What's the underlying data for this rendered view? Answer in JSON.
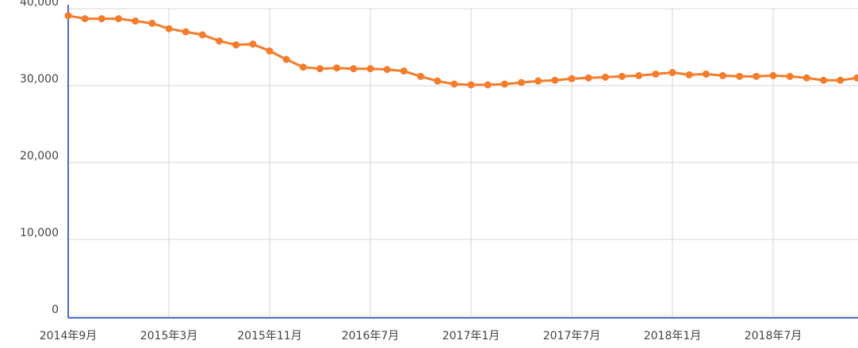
{
  "chart_data": {
    "type": "line",
    "categories": [
      "2014年9月",
      null,
      null,
      null,
      null,
      null,
      "2015年3月",
      null,
      null,
      null,
      null,
      null,
      "2015年11月",
      null,
      null,
      null,
      null,
      null,
      "2016年7月",
      null,
      null,
      null,
      null,
      null,
      "2017年1月",
      null,
      null,
      null,
      null,
      null,
      "2017年7月",
      null,
      null,
      null,
      null,
      null,
      "2018年1月",
      null,
      null,
      null,
      null,
      null,
      "2018年7月",
      null,
      null,
      null,
      null,
      null
    ],
    "series": [
      {
        "color": "#f57c2a",
        "values": [
          39100,
          38700,
          38700,
          38700,
          38400,
          38100,
          37400,
          37000,
          36600,
          35800,
          35300,
          35400,
          34500,
          33400,
          32400,
          32200,
          32300,
          32200,
          32200,
          32100,
          31900,
          31200,
          30600,
          30200,
          30100,
          30100,
          30200,
          30400,
          30600,
          30700,
          30900,
          31000,
          31100,
          31200,
          31300,
          31500,
          31700,
          31400,
          31500,
          31300,
          31200,
          31200,
          31300,
          31200,
          31000,
          30700,
          30700,
          31000
        ]
      }
    ],
    "ylim": [
      0,
      40000
    ],
    "yticks": [
      0,
      {
        "value": 10000,
        "label": "10,000"
      },
      {
        "value": 20000,
        "label": "20,000"
      },
      {
        "value": 30000,
        "label": "30,000"
      },
      {
        "value": 40000,
        "label": "40,000"
      }
    ],
    "grid": true
  }
}
